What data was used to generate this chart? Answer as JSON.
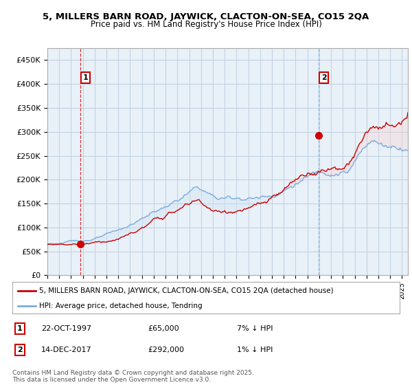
{
  "title1": "5, MILLERS BARN ROAD, JAYWICK, CLACTON-ON-SEA, CO15 2QA",
  "title2": "Price paid vs. HM Land Registry's House Price Index (HPI)",
  "ylabel_ticks": [
    "£0",
    "£50K",
    "£100K",
    "£150K",
    "£200K",
    "£250K",
    "£300K",
    "£350K",
    "£400K",
    "£450K"
  ],
  "ytick_vals": [
    0,
    50000,
    100000,
    150000,
    200000,
    250000,
    300000,
    350000,
    400000,
    450000
  ],
  "ylim": [
    0,
    475000
  ],
  "xlim_start": 1995.0,
  "xlim_end": 2025.5,
  "sale1_x": 1997.81,
  "sale1_y": 65000,
  "sale2_x": 2017.96,
  "sale2_y": 292000,
  "legend_line1": "5, MILLERS BARN ROAD, JAYWICK, CLACTON-ON-SEA, CO15 2QA (detached house)",
  "legend_line2": "HPI: Average price, detached house, Tendring",
  "annotation1_date": "22-OCT-1997",
  "annotation1_price": "£65,000",
  "annotation1_hpi": "7% ↓ HPI",
  "annotation2_date": "14-DEC-2017",
  "annotation2_price": "£292,000",
  "annotation2_hpi": "1% ↓ HPI",
  "footer": "Contains HM Land Registry data © Crown copyright and database right 2025.\nThis data is licensed under the Open Government Licence v3.0.",
  "line_color_red": "#cc0000",
  "line_color_blue": "#7aacdb",
  "fill_color_blue": "#d0e4f5",
  "bg_chart": "#e8f0f8",
  "background_color": "#ffffff",
  "grid_color": "#c0cfe0",
  "vline1_color": "#cc0000",
  "vline2_color": "#7aacdb"
}
